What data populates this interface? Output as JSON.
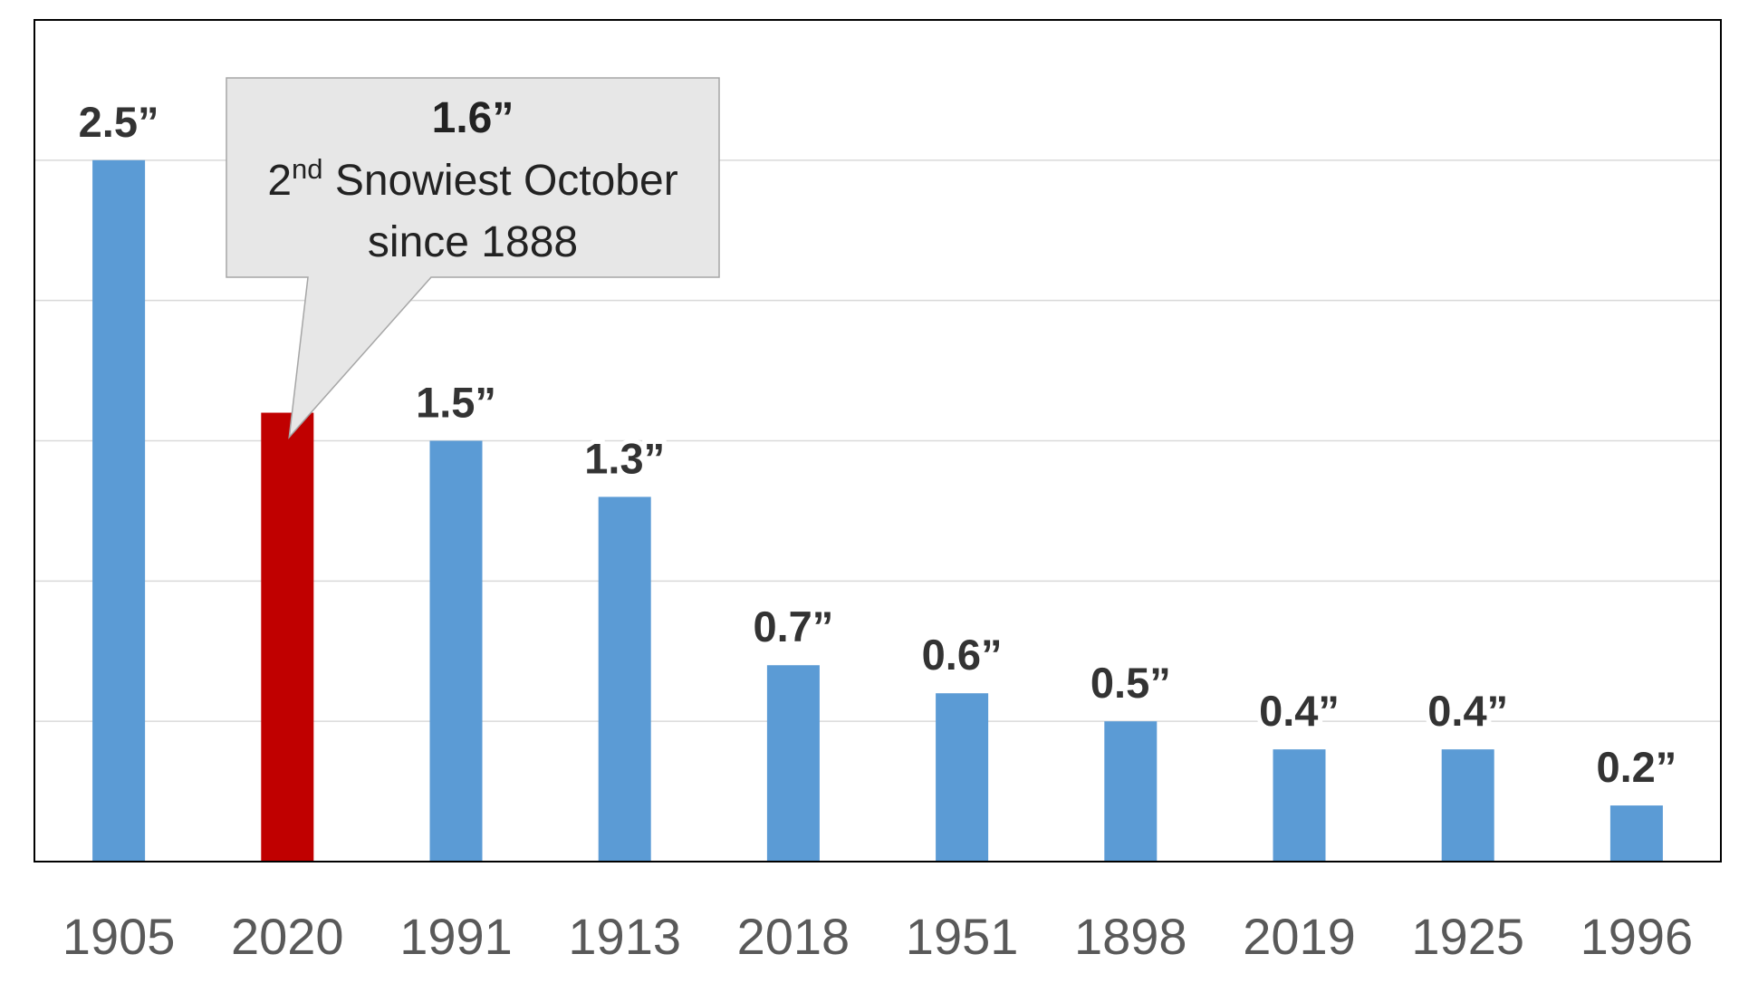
{
  "chart_data": {
    "type": "bar",
    "categories": [
      "1905",
      "2020",
      "1991",
      "1913",
      "2018",
      "1951",
      "1898",
      "2019",
      "1925",
      "1996"
    ],
    "values": [
      2.5,
      1.6,
      1.5,
      1.3,
      0.7,
      0.6,
      0.5,
      0.4,
      0.4,
      0.2
    ],
    "data_labels": [
      "2.5”",
      "",
      "1.5”",
      "1.3”",
      "0.7”",
      "0.6”",
      "0.5”",
      "0.4”",
      "0.4”",
      "0.2”"
    ],
    "title": "",
    "xlabel": "",
    "ylabel": "",
    "ylim": [
      0,
      3.0
    ],
    "gridlines": [
      0.5,
      1.0,
      1.5,
      2.0,
      2.5
    ],
    "grid": true,
    "highlight_category": "2020",
    "colors": {
      "bar": "#5b9bd5",
      "highlight": "#c00000",
      "grid": "#d9d9d9",
      "frame": "#000000",
      "callout_fill": "#e7e7e7",
      "callout_stroke": "#a6a6a6"
    },
    "annotation": {
      "category": "2020",
      "value_text": "1.6”",
      "rank_number": "2",
      "rank_suffix": "nd",
      "line1_rest": " Snowiest October",
      "line2": "since 1888"
    }
  }
}
